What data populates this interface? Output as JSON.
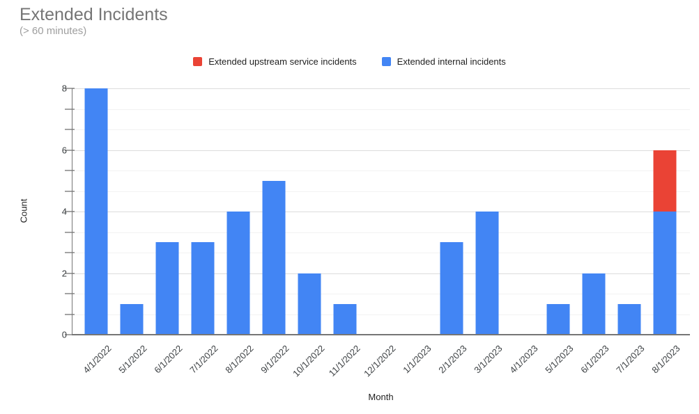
{
  "chart_data": {
    "type": "bar",
    "stacked": true,
    "title": "Extended Incidents",
    "subtitle": "(> 60 minutes)",
    "xlabel": "Month",
    "ylabel": "Count",
    "ylim": [
      0,
      8
    ],
    "y_major_ticks": [
      0,
      2,
      4,
      6,
      8
    ],
    "y_intervals": 12,
    "y_minor_per_major": 2,
    "grid": true,
    "legend_position": "top-center",
    "categories": [
      "4/1/2022",
      "5/1/2022",
      "6/1/2022",
      "7/1/2022",
      "8/1/2022",
      "9/1/2022",
      "10/1/2022",
      "11/1/2022",
      "12/1/2022",
      "1/1/2023",
      "2/1/2023",
      "3/1/2023",
      "4/1/2023",
      "5/1/2023",
      "6/1/2023",
      "7/1/2023",
      "8/1/2023"
    ],
    "series": [
      {
        "name": "Extended upstream service incidents",
        "color": "#EA4335",
        "values": [
          0,
          0,
          0,
          0,
          0,
          0,
          0,
          0,
          0,
          0,
          0,
          0,
          0,
          0,
          0,
          0,
          2
        ]
      },
      {
        "name": "Extended internal incidents",
        "color": "#4285F4",
        "values": [
          8,
          1,
          3,
          3,
          4,
          5,
          2,
          1,
          0,
          0,
          3,
          4,
          0,
          1,
          2,
          1,
          4
        ]
      }
    ],
    "stack_order_note": "internal (blue) at bottom, upstream (red) stacked on top"
  }
}
